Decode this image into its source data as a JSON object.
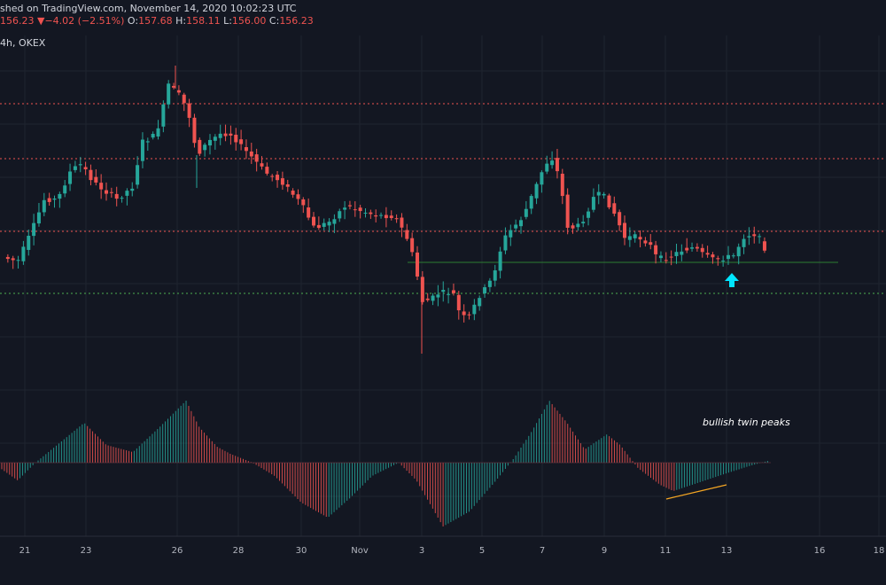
{
  "header": {
    "published": "shed on TradingView.com, November 14, 2020 10:02:23 UTC",
    "last": "156.23",
    "change_arrow": "▼",
    "change": "−4.02 (−2.51%)",
    "o_label": "O:",
    "o": "157.68",
    "h_label": "H:",
    "h": "158.11",
    "l_label": "L:",
    "l": "156.00",
    "c_label": "C:",
    "c": "156.23",
    "interval": "4h, OKEX"
  },
  "colors": {
    "background": "#131722",
    "bull": "#26a69a",
    "bear": "#ef5350",
    "hist_pos": "#26a69a",
    "hist_neg": "#ef5350",
    "resistance": "#ef5350",
    "support_dotted": "#4caf50",
    "support_solid": "#2e7d32",
    "annotation_arrow": "#00e5ff",
    "trendline": "#f5a623"
  },
  "chart_data": {
    "type": "candlestick",
    "x_ticks": [
      "21",
      "23",
      "26",
      "28",
      "30",
      "Nov",
      "3",
      "5",
      "7",
      "9",
      "11",
      "13",
      "16",
      "18"
    ],
    "annotation_text": "bullish twin peaks",
    "annotation_arrow_icon": "arrow-up-icon",
    "grid": true
  }
}
